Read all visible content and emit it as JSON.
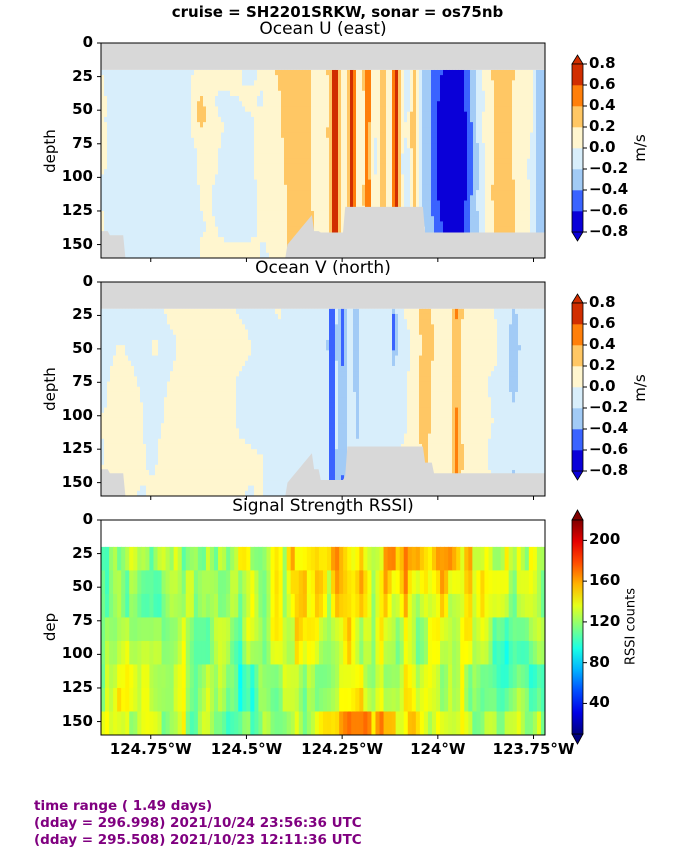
{
  "suptitle": "cruise = SH2201SRKW,  sonar = os75nb",
  "footer": {
    "line1": "time range ( 1.49 days)",
    "line2": "(dday = 296.998) 2021/10/24 23:56:36 UTC",
    "line3": "(dday = 295.508) 2021/10/23 12:11:36 UTC"
  },
  "chart_data": [
    {
      "type": "heatmap",
      "title": "Ocean U (east)",
      "ylabel": "depth",
      "colorbar_label": "m/s",
      "colorbar_ticks": [
        "0.8",
        "0.6",
        "0.4",
        "0.2",
        "0.0",
        "−0.2",
        "−0.4",
        "−0.6",
        "−0.8"
      ],
      "levels": [
        -0.8,
        -0.6,
        -0.4,
        -0.2,
        0.0,
        0.2,
        0.4,
        0.6,
        0.8
      ],
      "colors": [
        "#0a00d8",
        "#3a63ff",
        "#a2cbf6",
        "#d8eefb",
        "#fff6cf",
        "#ffc764",
        "#ff7f0a",
        "#d12e00"
      ],
      "xlim": [
        -124.88,
        -123.72
      ],
      "ylim": [
        160,
        0
      ],
      "yticks": [
        "0",
        "25",
        "50",
        "75",
        "100",
        "125",
        "150"
      ]
    },
    {
      "type": "heatmap",
      "title": "Ocean V (north)",
      "ylabel": "depth",
      "colorbar_label": "m/s",
      "colorbar_ticks": [
        "0.8",
        "0.6",
        "0.4",
        "0.2",
        "0.0",
        "−0.2",
        "−0.4",
        "−0.6",
        "−0.8"
      ],
      "levels": [
        -0.8,
        -0.6,
        -0.4,
        -0.2,
        0.0,
        0.2,
        0.4,
        0.6,
        0.8
      ],
      "colors": [
        "#0a00d8",
        "#3a63ff",
        "#a2cbf6",
        "#d8eefb",
        "#fff6cf",
        "#ffc764",
        "#ff7f0a",
        "#d12e00"
      ],
      "xlim": [
        -124.88,
        -123.72
      ],
      "ylim": [
        160,
        0
      ],
      "yticks": [
        "0",
        "25",
        "50",
        "75",
        "100",
        "125",
        "150"
      ]
    },
    {
      "type": "heatmap",
      "title": "Signal Strength RSSI)",
      "ylabel": "dep",
      "colorbar_label": "RSSI counts",
      "colorbar_ticks": [
        "200",
        "160",
        "120",
        "80",
        "40"
      ],
      "clim": [
        10,
        220
      ],
      "xlim": [
        -124.88,
        -123.72
      ],
      "ylim": [
        160,
        0
      ],
      "yticks": [
        "0",
        "25",
        "50",
        "75",
        "100",
        "125",
        "150"
      ],
      "xticks": [
        "124.75°W",
        "124.5°W",
        "124.25°W",
        "124°W",
        "123.75°W"
      ]
    }
  ]
}
